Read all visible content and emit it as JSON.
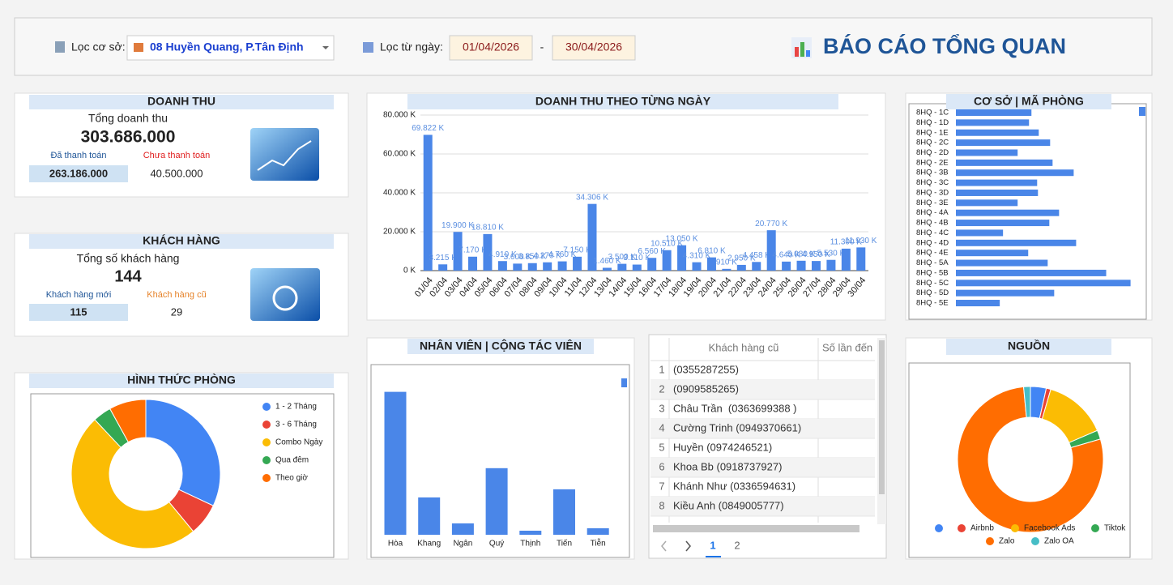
{
  "filters": {
    "branch_label": "Lọc cơ sở:",
    "branch_value": "08 Huyền Quang, P.Tân Định",
    "date_label": "Lọc từ ngày:",
    "date_from": "01/04/2026",
    "date_separator": "-",
    "date_to": "30/04/2026"
  },
  "title": "BÁO CÁO TỔNG QUAN",
  "revenue": {
    "title": "DOANH THU",
    "total_label": "Tổng doanh thu",
    "total": "303.686.000",
    "paid_label": "Đã thanh toán",
    "unpaid_label": "Chưa thanh toán",
    "paid": "263.186.000",
    "unpaid": "40.500.000"
  },
  "customers": {
    "title": "KHÁCH HÀNG",
    "total_label": "Tổng số khách hàng",
    "total": "144",
    "new_label": "Khách hàng mới",
    "old_label": "Khách hàng cũ",
    "new": "115",
    "old": "29"
  },
  "chart_data": [
    {
      "type": "bar",
      "title": "DOANH THU THEO TỪNG NGÀY",
      "color": "#4a86e8",
      "categories": [
        "01/04",
        "02/04",
        "03/04",
        "04/04",
        "05/04",
        "06/04",
        "07/04",
        "08/04",
        "09/04",
        "10/04",
        "11/04",
        "12/04",
        "13/04",
        "14/04",
        "15/04",
        "16/04",
        "17/04",
        "18/04",
        "19/04",
        "20/04",
        "21/04",
        "22/04",
        "23/04",
        "24/04",
        "25/04",
        "26/04",
        "27/04",
        "28/04",
        "29/04",
        "30/04"
      ],
      "values": [
        69822,
        3215,
        19900,
        7170,
        18810,
        4910,
        3600,
        3850,
        4270,
        4760,
        7150,
        34306,
        1460,
        3500,
        3110,
        6560,
        10510,
        13050,
        4310,
        6810,
        910,
        2950,
        4458,
        20770,
        4640,
        5080,
        4950,
        5530,
        11300,
        11930
      ],
      "value_labels": [
        "69.822 K",
        "3.215 K",
        "19.900 K",
        "7.170 K",
        "18.810 K",
        "4.910 K",
        "3.600 K",
        "3.850 K",
        "4.270 K",
        "4.760 K",
        "7.150 K",
        "34.306 K",
        "1.460 K",
        "3.500 K",
        "3.110 K",
        "6.560 K",
        "10.510 K",
        "13.050 K",
        "4.310 K",
        "6.810 K",
        "910 K",
        "2.950 K",
        "4.458 K",
        "20.770 K",
        "4.640 K",
        "5.080 K",
        "4.950 K",
        "5.530 K",
        "11.300 K",
        "11.930 K"
      ],
      "ylim": [
        0,
        80000
      ],
      "yticks": [
        {
          "value": 0,
          "label": "0 K"
        },
        {
          "value": 20000,
          "label": "20.000 K"
        },
        {
          "value": 40000,
          "label": "40.000 K"
        },
        {
          "value": 60000,
          "label": "60.000 K"
        },
        {
          "value": 80000,
          "label": "80.000 K"
        }
      ],
      "grid": true
    },
    {
      "type": "hbar",
      "title": "CƠ SỞ | MÃ PHÒNG",
      "color": "#4a86e8",
      "categories": [
        "8HQ - 1C",
        "8HQ - 1D",
        "8HQ - 1E",
        "8HQ - 2C",
        "8HQ - 2D",
        "8HQ - 2E",
        "8HQ - 3B",
        "8HQ - 3C",
        "8HQ - 3D",
        "8HQ - 3E",
        "8HQ - 4A",
        "8HQ - 4B",
        "8HQ - 4C",
        "8HQ - 4D",
        "8HQ - 4E",
        "8HQ - 5A",
        "8HQ - 5B",
        "8HQ - 5C",
        "8HQ - 5D",
        "8HQ - 5E"
      ],
      "values": [
        93,
        90,
        102,
        116,
        76,
        119,
        145,
        100,
        101,
        76,
        127,
        115,
        58,
        148,
        89,
        113,
        185,
        215,
        121,
        54
      ]
    },
    {
      "type": "bar",
      "title": "NHÂN VIÊN | CỘNG TÁC VIÊN",
      "color": "#4a86e8",
      "categories": [
        "Hòa",
        "Khang",
        "Ngân",
        "Quý",
        "Thịnh",
        "Tiến",
        "Tiễn"
      ],
      "values": [
        176,
        46,
        14,
        82,
        5,
        56,
        8
      ]
    },
    {
      "type": "pie",
      "title": "HÌNH THỨC PHÒNG",
      "donut": true,
      "legend": "right",
      "categories": [
        "1 - 2 Tháng",
        "3 - 6 Tháng",
        "Combo Ngày",
        "Qua đêm",
        "Theo giờ"
      ],
      "values": [
        32,
        7,
        49,
        4,
        8
      ],
      "colors": [
        "#4285f4",
        "#ea4335",
        "#fbbc04",
        "#34a853",
        "#ff6d01"
      ]
    },
    {
      "type": "pie",
      "title": "NGUỒN",
      "donut": true,
      "legend": "bottom",
      "categories": [
        null,
        "Airbnb",
        "Facebook Ads",
        "Tiktok",
        "Zalo",
        "Zalo OA"
      ],
      "values": [
        3.5,
        1,
        14,
        2,
        78,
        1.5
      ],
      "colors": [
        "#4285f4",
        "#ea4335",
        "#fbbc04",
        "#34a853",
        "#ff6d01",
        "#46bdc6"
      ]
    }
  ],
  "table": {
    "headers": [
      "Khách hàng cũ",
      "Số lần đến"
    ],
    "rows": [
      [
        1,
        "(0355287255)"
      ],
      [
        2,
        "(0909585265)"
      ],
      [
        3,
        "Châu Trần  (0363699388 )"
      ],
      [
        4,
        "Cường Trinh (0949370661)"
      ],
      [
        5,
        "Huyền (0974246521)"
      ],
      [
        6,
        "Khoa Bb (0918737927)"
      ],
      [
        7,
        "Khánh Như (0336594631)"
      ],
      [
        8,
        "Kiều Anh (0849005777)"
      ]
    ],
    "pages": [
      1,
      2
    ]
  }
}
